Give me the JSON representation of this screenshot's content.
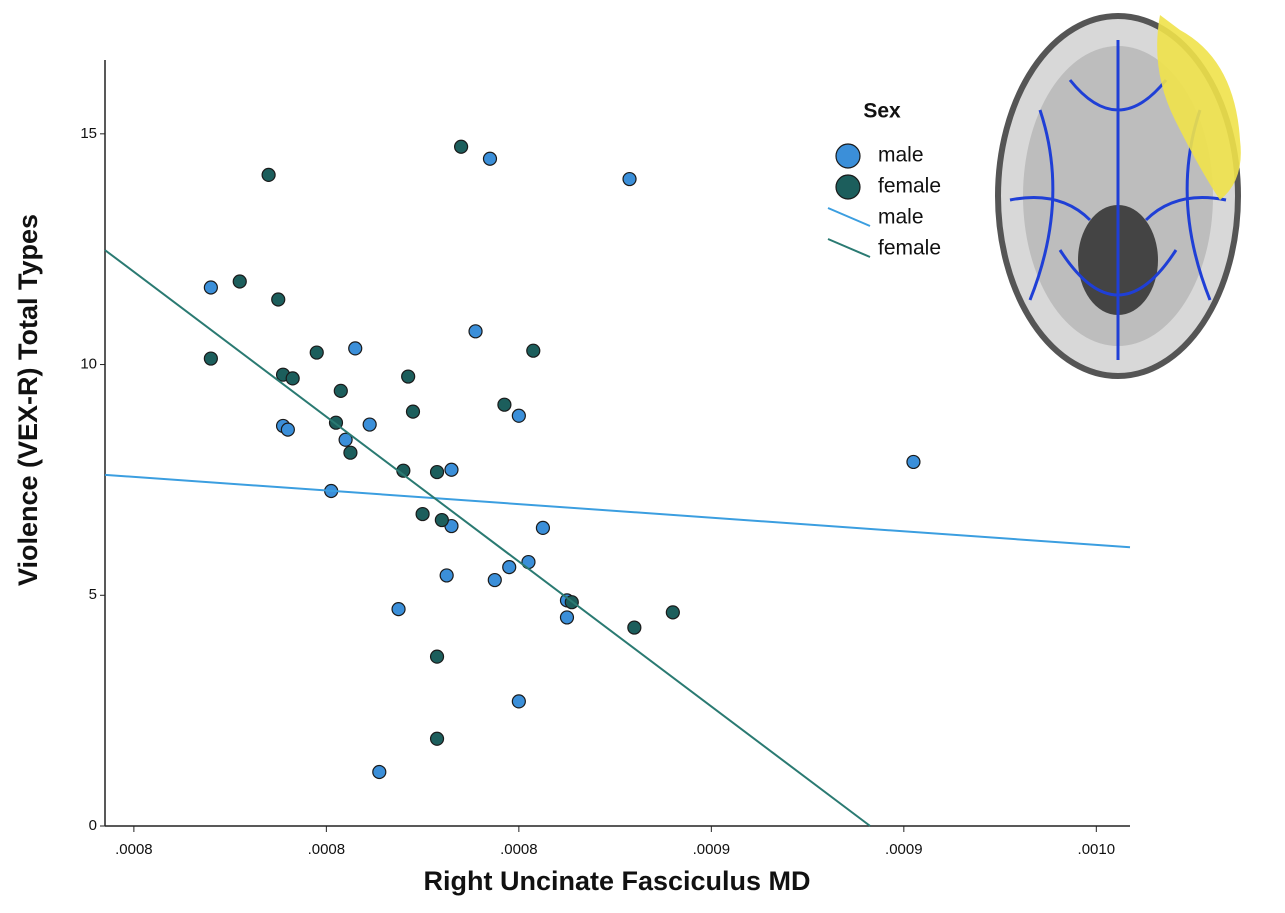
{
  "chart_data": {
    "type": "scatter",
    "x_label": "Right Uncinate Fasciculus MD",
    "y_label": "Violence (VEX-R) Total Types",
    "legend_title": "Sex",
    "xlim": [
      0.000754,
      0.000967
    ],
    "ylim": [
      0,
      16.6
    ],
    "xticks": [
      {
        "value": 0.00076,
        "label": ".0008"
      },
      {
        "value": 0.0008,
        "label": ".0008"
      },
      {
        "value": 0.00084,
        "label": ".0008"
      },
      {
        "value": 0.00088,
        "label": ".0009"
      },
      {
        "value": 0.00092,
        "label": ".0009"
      },
      {
        "value": 0.00096,
        "label": ".0010"
      }
    ],
    "yticks": [
      0,
      5,
      10,
      15
    ],
    "series": [
      {
        "name": "male",
        "color": "#3b8fd9",
        "x": [
          0.000776,
          0.000806,
          0.000791,
          0.000792,
          0.000804,
          0.000809,
          0.000801,
          0.000815,
          0.000811,
          0.000826,
          0.000826,
          0.000825,
          0.000831,
          0.000834,
          0.00084,
          0.000838,
          0.000835,
          0.000842,
          0.000845,
          0.00084,
          0.00085,
          0.00085,
          0.000863,
          0.000922
        ],
        "values": [
          11.67,
          10.35,
          8.67,
          8.59,
          8.37,
          8.7,
          7.26,
          4.7,
          1.17,
          7.72,
          6.5,
          5.43,
          10.72,
          14.46,
          8.89,
          5.61,
          5.33,
          5.72,
          6.46,
          2.7,
          4.89,
          4.52,
          14.02,
          7.89
        ]
      },
      {
        "name": "female",
        "color": "#1c5e5c",
        "x": [
          0.000788,
          0.000782,
          0.00079,
          0.000776,
          0.000791,
          0.000793,
          0.000798,
          0.000803,
          0.000802,
          0.000805,
          0.000817,
          0.000818,
          0.000816,
          0.000823,
          0.00082,
          0.000824,
          0.000823,
          0.000823,
          0.000828,
          0.000837,
          0.000843,
          0.000851,
          0.000864,
          0.000872
        ],
        "values": [
          14.11,
          11.8,
          11.41,
          10.13,
          9.78,
          9.7,
          10.26,
          9.43,
          8.74,
          8.09,
          9.74,
          8.98,
          7.7,
          7.67,
          6.76,
          6.63,
          3.67,
          1.89,
          14.72,
          9.13,
          10.3,
          4.85,
          4.3,
          4.63
        ]
      }
    ],
    "fit_lines": [
      {
        "name": "male",
        "color": "#3b9ee0",
        "x": [
          0.000754,
          0.000967
        ],
        "values": [
          7.61,
          6.04
        ]
      },
      {
        "name": "female",
        "color": "#2a7a72",
        "x": [
          0.000754,
          0.000913
        ],
        "values": [
          12.48,
          0
        ]
      }
    ]
  }
}
